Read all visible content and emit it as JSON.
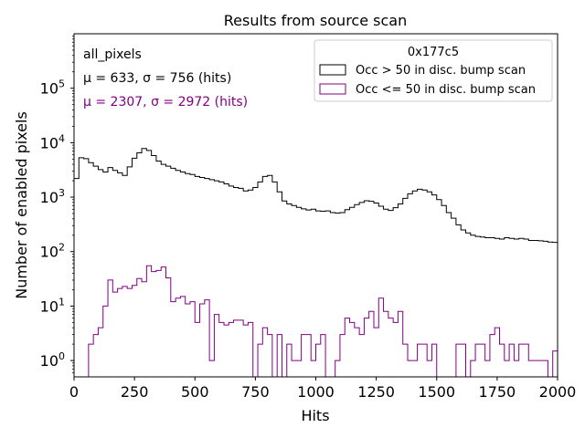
{
  "chart_data": {
    "type": "histogram",
    "title": "Results from source scan",
    "xlabel": "Hits",
    "ylabel": "Number of enabled pixels",
    "xlim": [
      0,
      2000
    ],
    "ylim_log10": [
      -0.3,
      6.0
    ],
    "yscale": "log",
    "bin_width": 20,
    "xticks": [
      {
        "value": 0,
        "label": "0"
      },
      {
        "value": 250,
        "label": "250"
      },
      {
        "value": 500,
        "label": "500"
      },
      {
        "value": 750,
        "label": "750"
      },
      {
        "value": 1000,
        "label": "1000"
      },
      {
        "value": 1250,
        "label": "1250"
      },
      {
        "value": 1500,
        "label": "1500"
      },
      {
        "value": 1750,
        "label": "1750"
      },
      {
        "value": 2000,
        "label": "2000"
      }
    ],
    "yticks": [
      {
        "exp": 0,
        "base": "10",
        "sup": "0"
      },
      {
        "exp": 1,
        "base": "10",
        "sup": "1"
      },
      {
        "exp": 2,
        "base": "10",
        "sup": "2"
      },
      {
        "exp": 3,
        "base": "10",
        "sup": "3"
      },
      {
        "exp": 4,
        "base": "10",
        "sup": "4"
      },
      {
        "exp": 5,
        "base": "10",
        "sup": "5"
      }
    ],
    "annotations": {
      "line1": "all_pixels",
      "line2": "μ = 633, σ = 756 (hits)",
      "line3": "μ = 2307, σ = 2972 (hits)",
      "line2_color": "#000000",
      "line3_color": "#800080"
    },
    "legend": {
      "title": "0x177c5",
      "location": "upper right",
      "entries": [
        {
          "label": "Occ > 50 in disc. bump scan",
          "color": "#000000"
        },
        {
          "label": "Occ <= 50 in disc. bump scan",
          "color": "#800080"
        }
      ]
    },
    "series": [
      {
        "name": "Occ > 50 in disc. bump scan",
        "color": "#000000",
        "values": [
          2200,
          5300,
          5100,
          4300,
          3700,
          3200,
          2900,
          3500,
          3100,
          2800,
          2500,
          3600,
          5200,
          6500,
          7800,
          7200,
          5800,
          4600,
          4000,
          3700,
          3400,
          3100,
          2900,
          2700,
          2600,
          2400,
          2300,
          2200,
          2100,
          2000,
          1900,
          1750,
          1600,
          1500,
          1450,
          1300,
          1350,
          1500,
          1900,
          2400,
          2500,
          1900,
          1250,
          850,
          750,
          700,
          650,
          610,
          580,
          600,
          560,
          550,
          560,
          520,
          510,
          520,
          590,
          650,
          730,
          800,
          860,
          840,
          780,
          680,
          600,
          570,
          640,
          750,
          950,
          1150,
          1300,
          1400,
          1350,
          1250,
          1100,
          900,
          700,
          520,
          410,
          310,
          250,
          220,
          200,
          190,
          185,
          180,
          180,
          175,
          170,
          180,
          175,
          170,
          175,
          170,
          160,
          160,
          158,
          155,
          150,
          148
        ]
      },
      {
        "name": "Occ <= 50 in disc. bump scan",
        "color": "#800080",
        "values": [
          0,
          0,
          0.5,
          2,
          3,
          4,
          10,
          30,
          18,
          21,
          23,
          21,
          24,
          32,
          28,
          55,
          43,
          45,
          52,
          33,
          12,
          14,
          15,
          11,
          12,
          5,
          11,
          13,
          1,
          7,
          5,
          4.5,
          5,
          5.5,
          5.5,
          4.5,
          5,
          0,
          2,
          4,
          3,
          0,
          3,
          0,
          2,
          1,
          1,
          3,
          3,
          1,
          2,
          3,
          0,
          0,
          1,
          3,
          6,
          5,
          4,
          3,
          6,
          8,
          4,
          14,
          8,
          6,
          5,
          8,
          2,
          1,
          1,
          2,
          2,
          1,
          2,
          0.5,
          0,
          0,
          0.5,
          2,
          2,
          0.5,
          1,
          2,
          2,
          1,
          3,
          4,
          2,
          1,
          2,
          1,
          2,
          2,
          1,
          1,
          1,
          1,
          0.5,
          1.5
        ]
      }
    ]
  }
}
